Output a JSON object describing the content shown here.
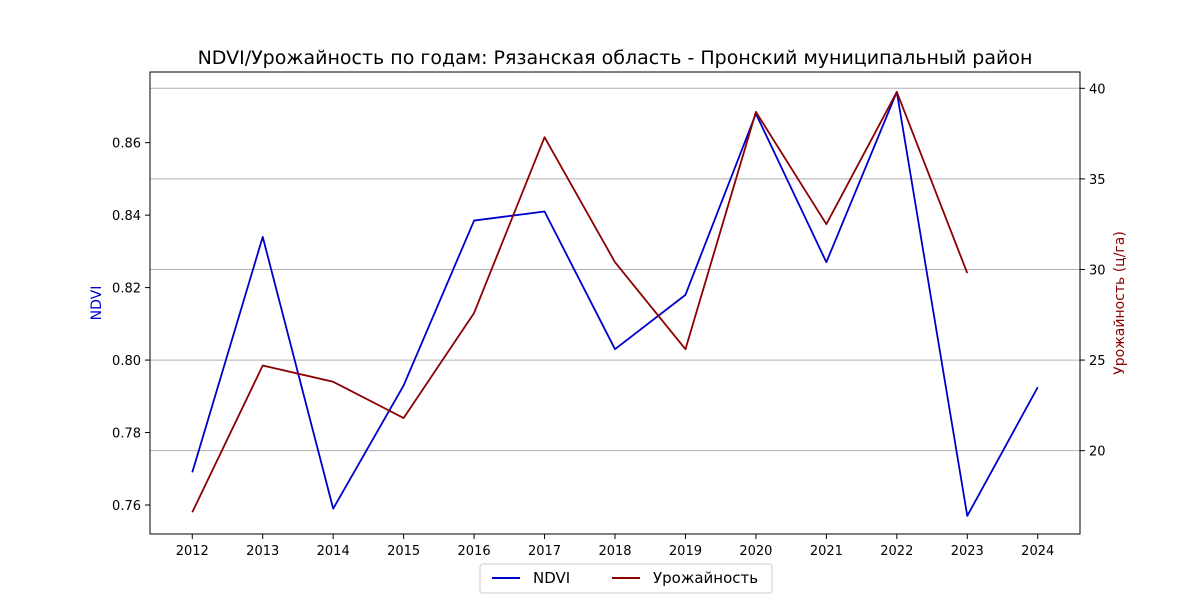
{
  "chart_data": {
    "type": "line",
    "title": "NDVI/Урожайность по годам: Рязанская область - Пронский муниципальный район",
    "x": [
      2012,
      2013,
      2014,
      2015,
      2016,
      2017,
      2018,
      2019,
      2020,
      2021,
      2022,
      2023,
      2024
    ],
    "x_ticks": [
      "2012",
      "2013",
      "2014",
      "2015",
      "2016",
      "2017",
      "2018",
      "2019",
      "2020",
      "2021",
      "2022",
      "2023",
      "2024"
    ],
    "xlim": [
      2011.4,
      2024.6
    ],
    "left_axis": {
      "label": "NDVI",
      "color": "#0000cd",
      "ylim": [
        0.752,
        0.8795
      ],
      "ticks": [
        0.76,
        0.78,
        0.8,
        0.82,
        0.84,
        0.86
      ],
      "tick_labels": [
        "0.76",
        "0.78",
        "0.80",
        "0.82",
        "0.84",
        "0.86"
      ]
    },
    "right_axis": {
      "label": "Урожайность (ц/га)",
      "color": "#8b0000",
      "ylim": [
        15.4,
        40.9
      ],
      "ticks": [
        20,
        25,
        30,
        35,
        40
      ],
      "tick_labels": [
        "20",
        "25",
        "30",
        "35",
        "40"
      ]
    },
    "grid": "horizontal lines at right-axis ticks",
    "series": [
      {
        "name": "NDVI",
        "axis": "left",
        "color": "#0000cd",
        "values": [
          0.769,
          0.834,
          0.759,
          0.793,
          0.8385,
          0.841,
          0.803,
          0.818,
          0.868,
          0.827,
          0.874,
          0.757,
          0.7925
        ]
      },
      {
        "name": "Урожайность",
        "axis": "right",
        "color": "#8b0000",
        "values": [
          16.6,
          24.7,
          23.8,
          21.8,
          27.6,
          37.3,
          30.4,
          25.6,
          38.7,
          32.5,
          39.8,
          29.8,
          null
        ]
      }
    ],
    "legend": {
      "placement": "bottom-center",
      "entries": [
        "NDVI",
        "Урожайность"
      ]
    }
  }
}
